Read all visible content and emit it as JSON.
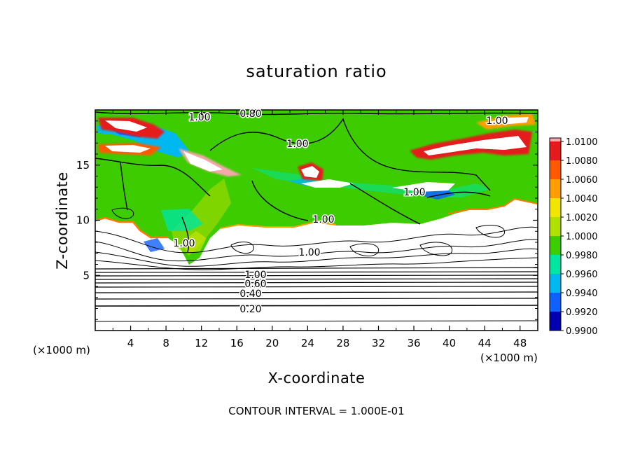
{
  "chart_data": {
    "type": "heatmap",
    "title": "saturation ratio",
    "xlabel": "X-coordinate",
    "ylabel": "Z-coordinate",
    "x_units": "(×1000 m)",
    "y_units": "(×1000 m)",
    "xlim": [
      0,
      50
    ],
    "ylim": [
      0,
      20
    ],
    "x_ticks": [
      "4",
      "8",
      "12",
      "16",
      "20",
      "24",
      "28",
      "32",
      "36",
      "40",
      "44",
      "48"
    ],
    "y_ticks": [
      "5",
      "10",
      "15"
    ],
    "colorbar": {
      "labels": [
        "1.0100",
        "1.0080",
        "1.0060",
        "1.0040",
        "1.0020",
        "1.0000",
        "0.9980",
        "0.9960",
        "0.9940",
        "0.9920",
        "0.9900"
      ],
      "colors": [
        "#f4a8a8",
        "#e41a1c",
        "#ff5a00",
        "#ff9c00",
        "#f2e600",
        "#b0e000",
        "#3ccc00",
        "#00e6a0",
        "#00b8f0",
        "#1060ff",
        "#0000b0",
        "#4b0080"
      ]
    },
    "contour_labels": [
      "0.80",
      "1.00",
      "1.00",
      "1.00",
      "1.00",
      "1.00",
      "1.00",
      "1.00",
      "1.00",
      "0.80",
      "0.60",
      "0.40",
      "0.20"
    ],
    "footer": "CONTOUR INTERVAL = 1.000E-01",
    "grid": false
  }
}
